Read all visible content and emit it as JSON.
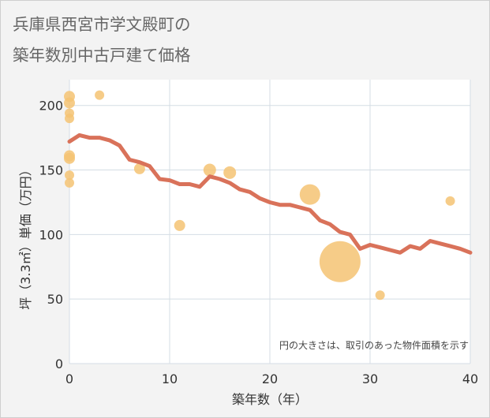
{
  "chart_data": {
    "type": "scatter",
    "title": [
      "兵庫県西宮市学文殿町の",
      "築年数別中古戸建て価格"
    ],
    "xlabel": "築年数（年）",
    "ylabel": "坪（3.3㎡）単価（万円）",
    "xlim": [
      0,
      40
    ],
    "ylim": [
      0,
      220
    ],
    "xticks": [
      0,
      10,
      20,
      30,
      40
    ],
    "yticks": [
      0,
      50,
      100,
      150,
      200
    ],
    "grid": true,
    "annotation": "円の大きさは、取引のあった物件面積を示す",
    "colors": {
      "bubble": "#f5c373",
      "line": "#d9725a",
      "plot_bg": "#ffffff",
      "grid": "#d4dde4"
    },
    "bubbles": [
      {
        "x": 0,
        "y": 207,
        "size": 7
      },
      {
        "x": 0,
        "y": 202,
        "size": 7
      },
      {
        "x": 0,
        "y": 194,
        "size": 6
      },
      {
        "x": 0,
        "y": 190,
        "size": 6
      },
      {
        "x": 0,
        "y": 161,
        "size": 7
      },
      {
        "x": 0,
        "y": 159,
        "size": 7
      },
      {
        "x": 0,
        "y": 146,
        "size": 6
      },
      {
        "x": 0,
        "y": 140,
        "size": 6
      },
      {
        "x": 3,
        "y": 208,
        "size": 6
      },
      {
        "x": 7,
        "y": 151,
        "size": 7
      },
      {
        "x": 11,
        "y": 107,
        "size": 7
      },
      {
        "x": 14,
        "y": 150,
        "size": 8
      },
      {
        "x": 16,
        "y": 148,
        "size": 8
      },
      {
        "x": 24,
        "y": 131,
        "size": 13
      },
      {
        "x": 27,
        "y": 79,
        "size": 26
      },
      {
        "x": 31,
        "y": 53,
        "size": 6
      },
      {
        "x": 38,
        "y": 126,
        "size": 6
      }
    ],
    "trend": {
      "x": [
        0,
        1,
        2,
        3,
        4,
        5,
        6,
        7,
        8,
        9,
        10,
        11,
        12,
        13,
        14,
        15,
        16,
        17,
        18,
        19,
        20,
        21,
        22,
        23,
        24,
        25,
        26,
        27,
        28,
        29,
        30,
        31,
        32,
        33,
        34,
        35,
        36,
        37,
        38,
        39,
        40
      ],
      "y": [
        172,
        177,
        175,
        175,
        173,
        169,
        158,
        156,
        153,
        143,
        142,
        139,
        139,
        137,
        145,
        143,
        140,
        135,
        133,
        128,
        125,
        123,
        123,
        121,
        119,
        111,
        108,
        102,
        100,
        89,
        92,
        90,
        88,
        86,
        91,
        89,
        95,
        93,
        91,
        89,
        86
      ]
    }
  }
}
